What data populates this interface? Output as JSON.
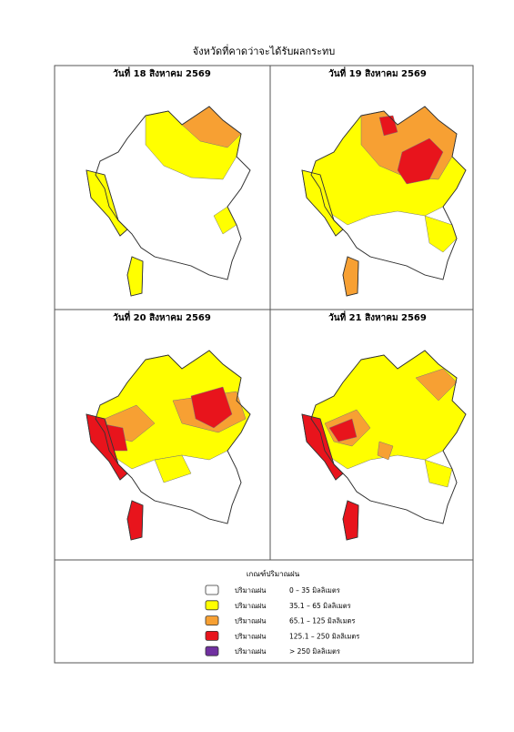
{
  "title": "จังหวัดที่คาดว่าจะได้รับผลกระทบ",
  "panels": [
    {
      "date": "วันที่ 18 สิงหาคม 2569"
    },
    {
      "date": "วันที่ 19 สิงหาคม 2569"
    },
    {
      "date": "วันที่ 20 สิงหาคม 2569"
    },
    {
      "date": "วันที่ 21 สิงหาคม 2569"
    }
  ],
  "legend": {
    "title": "เกณฑ์ปริมาณฝน",
    "items": [
      {
        "label": "ปริมาณฝน",
        "range": "0 – 35 มิลลิเมตร",
        "color": "#ffffff"
      },
      {
        "label": "ปริมาณฝน",
        "range": "35.1 – 65 มิลลิเมตร",
        "color": "#ffff00"
      },
      {
        "label": "ปริมาณฝน",
        "range": "65.1 – 125 มิลลิเมตร",
        "color": "#f7a033"
      },
      {
        "label": "ปริมาณฝน",
        "range": "125.1 – 250 มิลลิเมตร",
        "color": "#e8141c"
      },
      {
        "label": "ปริมาณฝน",
        "range": "> 250 มิลลิเมตร",
        "color": "#7030a0"
      }
    ]
  }
}
